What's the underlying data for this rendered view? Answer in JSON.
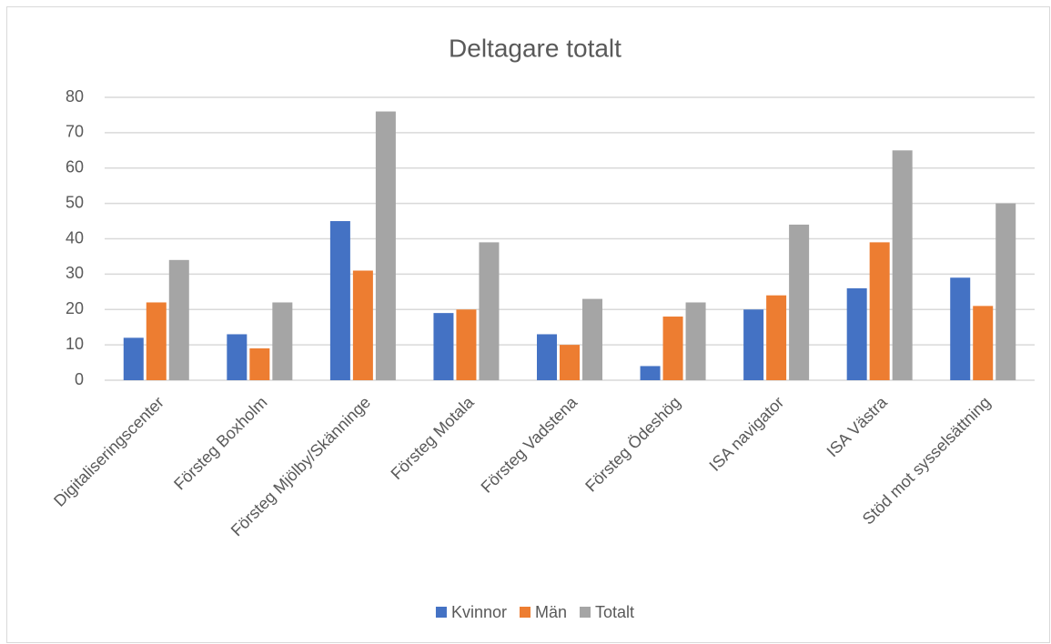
{
  "chart_data": {
    "type": "bar",
    "title": "Deltagare totalt",
    "categories": [
      "Digitaliseringscenter",
      "Försteg Boxholm",
      "Försteg Mjölby/Skänninge",
      "Försteg Motala",
      "Försteg Vadstena",
      "Försteg Ödeshög",
      "ISA navigator",
      "ISA Västra",
      "Stöd mot sysselsättning"
    ],
    "series": [
      {
        "name": "Kvinnor",
        "color": "#4472c4",
        "values": [
          12,
          13,
          45,
          19,
          13,
          4,
          20,
          26,
          29
        ]
      },
      {
        "name": "Män",
        "color": "#ed7d31",
        "values": [
          22,
          9,
          31,
          20,
          10,
          18,
          24,
          39,
          21
        ]
      },
      {
        "name": "Totalt",
        "color": "#a5a5a5",
        "values": [
          34,
          22,
          76,
          39,
          23,
          22,
          44,
          65,
          50
        ]
      }
    ],
    "ylim": [
      0,
      80
    ],
    "yticks": [
      0,
      10,
      20,
      30,
      40,
      50,
      60,
      70,
      80
    ],
    "grid": true,
    "legend": "bottom"
  }
}
